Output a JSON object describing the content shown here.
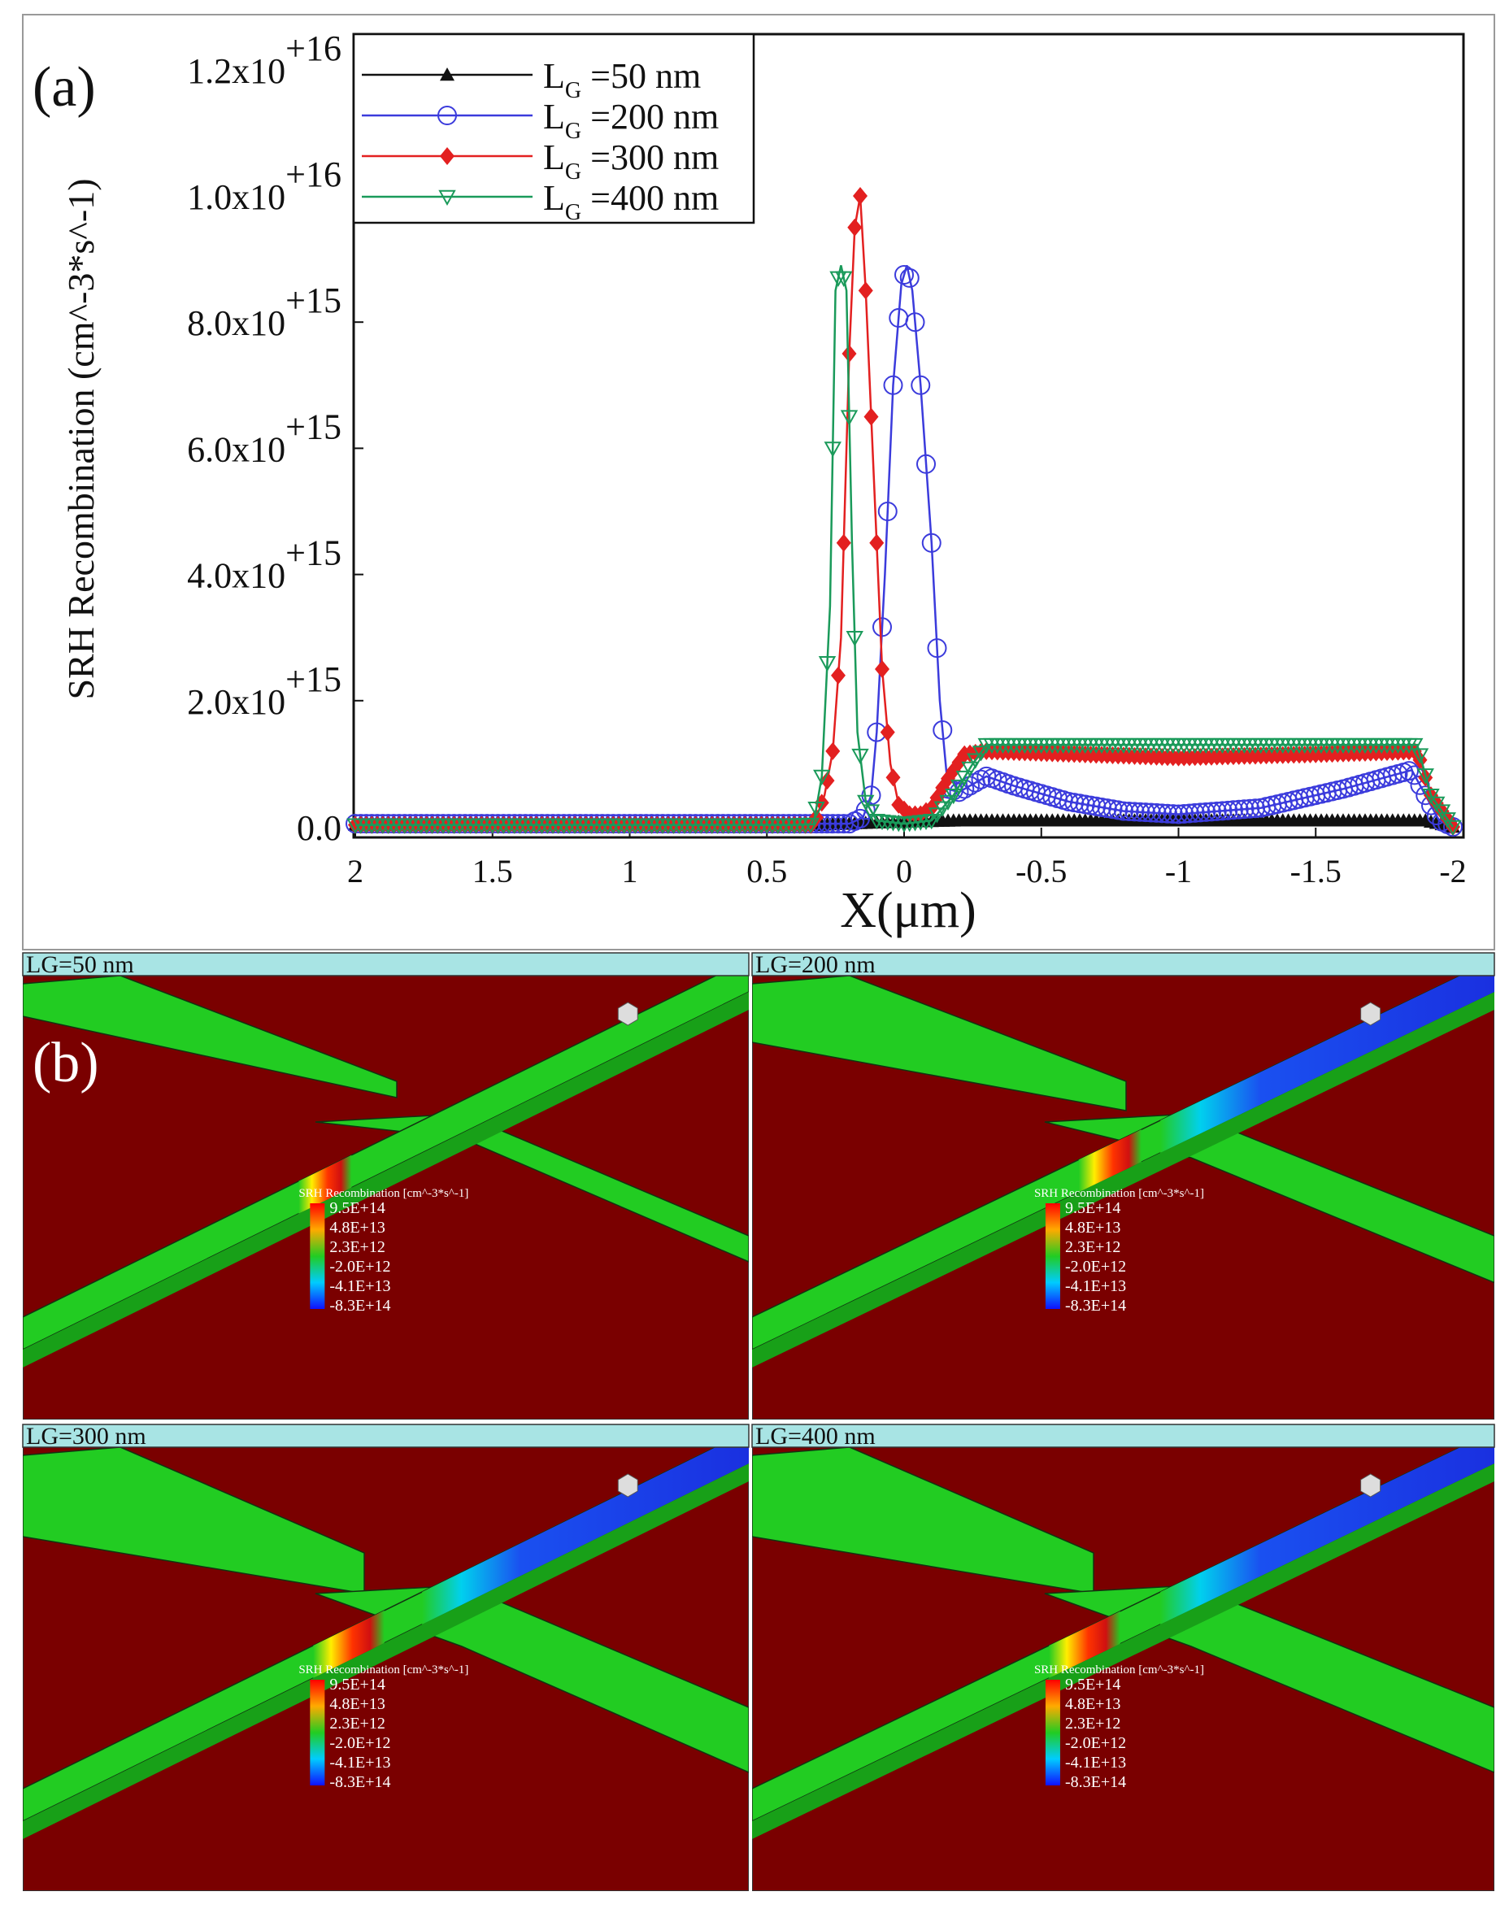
{
  "chart_data": {
    "type": "line",
    "panel_label": "(a)",
    "title": "",
    "xlabel": "X(μm)",
    "ylabel": "SRH Recombination (cm^-3*s^-1)",
    "xlim": [
      2,
      -2
    ],
    "ylim": [
      0,
      1.3e+16
    ],
    "x_ticks": [
      2,
      1.5,
      1,
      0.5,
      0,
      -0.5,
      -1,
      -1.5,
      -2
    ],
    "x_tick_labels": [
      "2",
      "1.5",
      "1",
      "0.5",
      "0",
      "-0.5",
      "-1",
      "-1.5",
      "-2"
    ],
    "y_ticks": [
      0,
      2000000000000000.0,
      4000000000000000.0,
      6000000000000000.0,
      8000000000000000.0,
      1e+16,
      1.2e+16
    ],
    "y_tick_labels": [
      {
        "mant": "0.0",
        "exp": ""
      },
      {
        "mant": "2.0x10",
        "exp": "+15"
      },
      {
        "mant": "4.0x10",
        "exp": "+15"
      },
      {
        "mant": "6.0x10",
        "exp": "+15"
      },
      {
        "mant": "8.0x10",
        "exp": "+15"
      },
      {
        "mant": "1.0x10",
        "exp": "+16"
      },
      {
        "mant": "1.2x10",
        "exp": "+16"
      }
    ],
    "legend_position": "top-left",
    "series": [
      {
        "name": "L_G =50 nm",
        "label_main": "L",
        "label_sub": "G",
        "label_rest": " =50 nm",
        "color": "#111111",
        "marker": "triangle-up-filled",
        "points": [
          [
            2,
            30000000000000.0
          ],
          [
            0.3,
            30000000000000.0
          ],
          [
            0.15,
            60000000000000.0
          ],
          [
            0,
            80000000000000.0
          ],
          [
            -0.2,
            100000000000000.0
          ],
          [
            -1.85,
            100000000000000.0
          ],
          [
            -1.9,
            100000000000000.0
          ],
          [
            -2,
            0
          ]
        ]
      },
      {
        "name": "L_G =200 nm",
        "label_main": "L",
        "label_sub": "G",
        "label_rest": " =200 nm",
        "color": "#3b3bdc",
        "marker": "circle-open",
        "points": [
          [
            2,
            50000000000000.0
          ],
          [
            0.2,
            50000000000000.0
          ],
          [
            0.15,
            150000000000000.0
          ],
          [
            0.12,
            500000000000000.0
          ],
          [
            0.1,
            1500000000000000.0
          ],
          [
            0.07,
            4000000000000000.0
          ],
          [
            0.04,
            7000000000000000.0
          ],
          [
            0.01,
            8600000000000000.0
          ],
          [
            -0.01,
            8900000000000000.0
          ],
          [
            -0.03,
            8500000000000000.0
          ],
          [
            -0.06,
            7000000000000000.0
          ],
          [
            -0.1,
            4500000000000000.0
          ],
          [
            -0.13,
            2000000000000000.0
          ],
          [
            -0.16,
            600000000000000.0
          ],
          [
            -0.2,
            550000000000000.0
          ],
          [
            -0.3,
            800000000000000.0
          ],
          [
            -0.4,
            650000000000000.0
          ],
          [
            -0.6,
            400000000000000.0
          ],
          [
            -0.8,
            250000000000000.0
          ],
          [
            -1.0,
            200000000000000.0
          ],
          [
            -1.3,
            300000000000000.0
          ],
          [
            -1.6,
            600000000000000.0
          ],
          [
            -1.85,
            900000000000000.0
          ],
          [
            -1.9,
            500000000000000.0
          ],
          [
            -1.95,
            100000000000000.0
          ],
          [
            -2,
            0
          ]
        ]
      },
      {
        "name": "L_G =300 nm",
        "label_main": "L",
        "label_sub": "G",
        "label_rest": " =300 nm",
        "color": "#e32020",
        "marker": "diamond-filled",
        "points": [
          [
            2,
            30000000000000.0
          ],
          [
            0.33,
            30000000000000.0
          ],
          [
            0.29,
            500000000000000.0
          ],
          [
            0.26,
            1200000000000000.0
          ],
          [
            0.23,
            3000000000000000.0
          ],
          [
            0.2,
            7500000000000000.0
          ],
          [
            0.18,
            9500000000000000.0
          ],
          [
            0.16,
            1e+16
          ],
          [
            0.14,
            8500000000000000.0
          ],
          [
            0.11,
            5500000000000000.0
          ],
          [
            0.08,
            2500000000000000.0
          ],
          [
            0.05,
            1000000000000000.0
          ],
          [
            0.02,
            350000000000000.0
          ],
          [
            -0.02,
            200000000000000.0
          ],
          [
            -0.06,
            200000000000000.0
          ],
          [
            -0.1,
            300000000000000.0
          ],
          [
            -0.15,
            700000000000000.0
          ],
          [
            -0.22,
            1150000000000000.0
          ],
          [
            -0.3,
            1200000000000000.0
          ],
          [
            -1.0,
            1100000000000000.0
          ],
          [
            -1.5,
            1150000000000000.0
          ],
          [
            -1.87,
            1200000000000000.0
          ],
          [
            -1.92,
            500000000000000.0
          ],
          [
            -2,
            0
          ]
        ]
      },
      {
        "name": "L_G =400 nm",
        "label_main": "L",
        "label_sub": "G",
        "label_rest": " =400 nm",
        "color": "#1a9a5a",
        "marker": "triangle-down-open",
        "points": [
          [
            2,
            30000000000000.0
          ],
          [
            0.4,
            30000000000000.0
          ],
          [
            0.33,
            40000000000000.0
          ],
          [
            0.3,
            800000000000000.0
          ],
          [
            0.27,
            3500000000000000.0
          ],
          [
            0.25,
            8500000000000000.0
          ],
          [
            0.23,
            8900000000000000.0
          ],
          [
            0.21,
            8500000000000000.0
          ],
          [
            0.19,
            4500000000000000.0
          ],
          [
            0.17,
            1500000000000000.0
          ],
          [
            0.14,
            400000000000000.0
          ],
          [
            0.1,
            100000000000000.0
          ],
          [
            0,
            50000000000000.0
          ],
          [
            -0.1,
            100000000000000.0
          ],
          [
            -0.18,
            500000000000000.0
          ],
          [
            -0.25,
            1000000000000000.0
          ],
          [
            -0.3,
            1300000000000000.0
          ],
          [
            -1.0,
            1300000000000000.0
          ],
          [
            -1.5,
            1300000000000000.0
          ],
          [
            -1.87,
            1300000000000000.0
          ],
          [
            -1.92,
            500000000000000.0
          ],
          [
            -2,
            0
          ]
        ]
      }
    ]
  },
  "panel_b": {
    "label": "(b)",
    "panels": [
      {
        "title": "LG=50 nm",
        "variant": "50"
      },
      {
        "title": "LG=200 nm",
        "variant": "200"
      },
      {
        "title": "LG=300 nm",
        "variant": "300"
      },
      {
        "title": "LG=400 nm",
        "variant": "400"
      }
    ],
    "colorbar": {
      "title": "SRH Recombination [cm^-3*s^-1]",
      "labels": [
        "9.5E+14",
        "4.8E+13",
        "2.3E+12",
        "-2.0E+12",
        "-4.1E+13",
        "-8.3E+14"
      ],
      "colors": [
        "#ff0000",
        "#ff9900",
        "#22cc22",
        "#00e5cc",
        "#0066ff",
        "#1a1aff"
      ]
    },
    "colors": {
      "background": "#7a0000",
      "device": "#22cc22",
      "title_bar": "#a8e4e4"
    }
  }
}
